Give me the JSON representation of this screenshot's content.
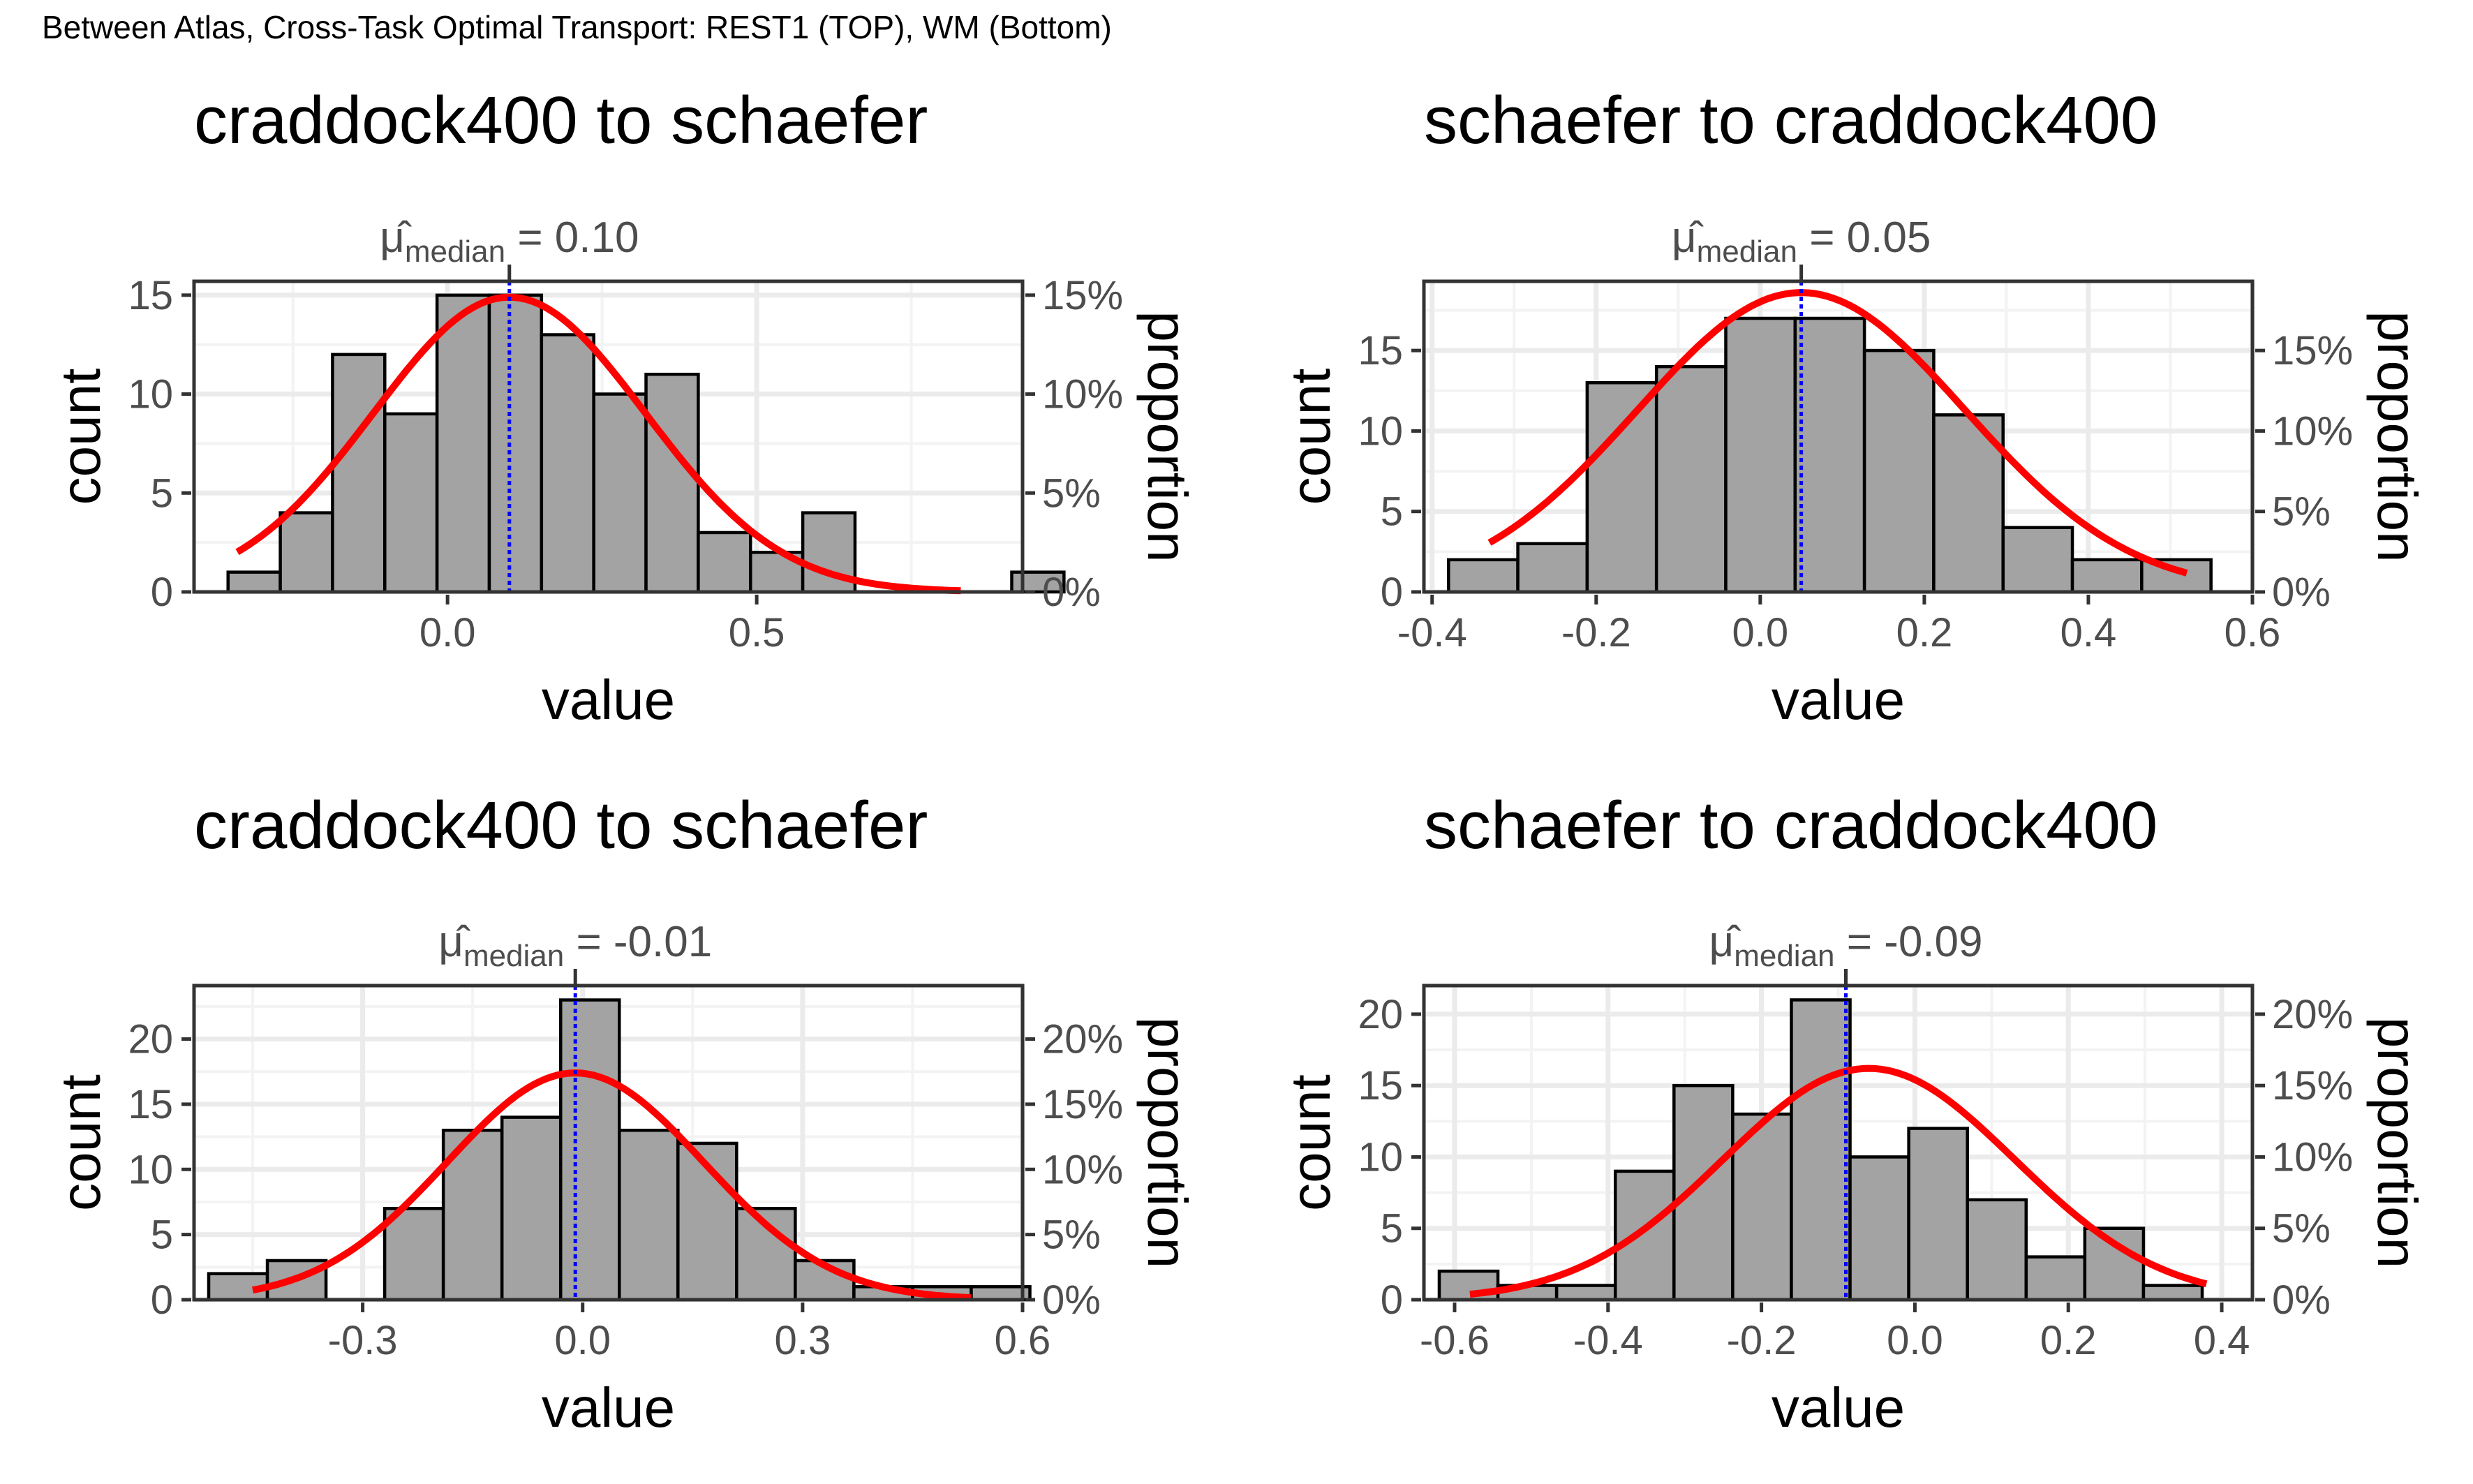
{
  "page": {
    "suptitle": "Between Atlas, Cross-Task Optimal Transport:  REST1  (TOP),  WM  (Bottom)"
  },
  "colors": {
    "bar_fill": "#a3a3a3",
    "bar_stroke": "#000000",
    "curve": "#ff0000",
    "median_line": "#0000ff",
    "grid": "#ebebeb",
    "axis_text": "#4d4d4d"
  },
  "chart_data": [
    {
      "type": "bar",
      "title": "craddock400 to schaefer",
      "xlabel": "value",
      "ylabel": "count",
      "ylabel_right": "proportion",
      "median_label": "0.10",
      "median": 0.1,
      "xlim": [
        -0.41,
        0.93
      ],
      "ylim": [
        0,
        15.7
      ],
      "x_ticks": [
        0.0,
        0.5
      ],
      "x_tick_labels": [
        "0.0",
        "0.5"
      ],
      "y_ticks": [
        0,
        5,
        10,
        15
      ],
      "y_tick_labels": [
        "0",
        "5",
        "10",
        "15"
      ],
      "y2_ticks": [
        0,
        5,
        10,
        15
      ],
      "y2_tick_labels": [
        "0%",
        "5%",
        "10%",
        "15%"
      ],
      "bin_width": 0.0845,
      "bin_start": -0.355,
      "values": [
        1,
        4,
        12,
        9,
        15,
        15,
        13,
        10,
        11,
        3,
        2,
        4,
        0,
        0,
        0,
        1
      ],
      "normal_fit": {
        "mean": 0.1,
        "sd": 0.22,
        "peak": 14.9,
        "x_from": -0.34,
        "x_to": 0.83
      }
    },
    {
      "type": "bar",
      "title": "schaefer to craddock400",
      "xlabel": "value",
      "ylabel": "count",
      "ylabel_right": "proportion",
      "median_label": "0.05",
      "median": 0.05,
      "xlim": [
        -0.41,
        0.6
      ],
      "ylim": [
        0,
        19.3
      ],
      "x_ticks": [
        -0.4,
        -0.2,
        0.0,
        0.2,
        0.4,
        0.6
      ],
      "x_tick_labels": [
        "-0.4",
        "-0.2",
        "0.0",
        "0.2",
        "0.4",
        "0.6"
      ],
      "y_ticks": [
        0,
        5,
        10,
        15
      ],
      "y_tick_labels": [
        "0",
        "5",
        "10",
        "15"
      ],
      "y2_ticks": [
        0,
        5,
        10,
        15
      ],
      "y2_tick_labels": [
        "0%",
        "5%",
        "10%",
        "15%"
      ],
      "bin_width": 0.0845,
      "bin_start": -0.38,
      "values": [
        2,
        3,
        13,
        14,
        17,
        17,
        15,
        11,
        4,
        2,
        2
      ],
      "normal_fit": {
        "mean": 0.05,
        "sd": 0.2,
        "peak": 18.6,
        "x_from": -0.33,
        "x_to": 0.52
      }
    },
    {
      "type": "bar",
      "title": "craddock400 to schaefer",
      "xlabel": "value",
      "ylabel": "count",
      "ylabel_right": "proportion",
      "median_label": "-0.01",
      "median": -0.01,
      "xlim": [
        -0.53,
        0.6
      ],
      "ylim": [
        0,
        24.1
      ],
      "x_ticks": [
        -0.3,
        0.0,
        0.3,
        0.6
      ],
      "x_tick_labels": [
        "-0.3",
        "0.0",
        "0.3",
        "0.6"
      ],
      "y_ticks": [
        0,
        5,
        10,
        15,
        20
      ],
      "y_tick_labels": [
        "0",
        "5",
        "10",
        "15",
        "20"
      ],
      "y2_ticks": [
        0,
        5,
        10,
        15,
        20
      ],
      "y2_tick_labels": [
        "0%",
        "5%",
        "10%",
        "15%",
        "20%"
      ],
      "bin_width": 0.08,
      "bin_start": -0.51,
      "values": [
        2,
        3,
        0,
        7,
        13,
        14,
        23,
        13,
        12,
        7,
        3,
        1,
        1,
        1
      ],
      "normal_fit": {
        "mean": -0.01,
        "sd": 0.175,
        "peak": 17.4,
        "x_from": -0.45,
        "x_to": 0.53
      }
    },
    {
      "type": "bar",
      "title": "schaefer to craddock400",
      "xlabel": "value",
      "ylabel": "count",
      "ylabel_right": "proportion",
      "median_label": "-0.09",
      "median": -0.09,
      "xlim": [
        -0.64,
        0.44
      ],
      "ylim": [
        0,
        22
      ],
      "x_ticks": [
        -0.6,
        -0.4,
        -0.2,
        0.0,
        0.2,
        0.4
      ],
      "x_tick_labels": [
        "-0.6",
        "-0.4",
        "-0.2",
        "0.0",
        "0.2",
        "0.4"
      ],
      "y_ticks": [
        0,
        5,
        10,
        15,
        20
      ],
      "y_tick_labels": [
        "0",
        "5",
        "10",
        "15",
        "20"
      ],
      "y2_ticks": [
        0,
        5,
        10,
        15,
        20
      ],
      "y2_tick_labels": [
        "0%",
        "5%",
        "10%",
        "15%",
        "20%"
      ],
      "bin_width": 0.0765,
      "bin_start": -0.62,
      "values": [
        2,
        1,
        1,
        9,
        15,
        13,
        21,
        10,
        12,
        7,
        3,
        5,
        1
      ],
      "normal_fit": {
        "mean": -0.06,
        "sd": 0.19,
        "peak": 16.2,
        "x_from": -0.58,
        "x_to": 0.38
      }
    }
  ]
}
